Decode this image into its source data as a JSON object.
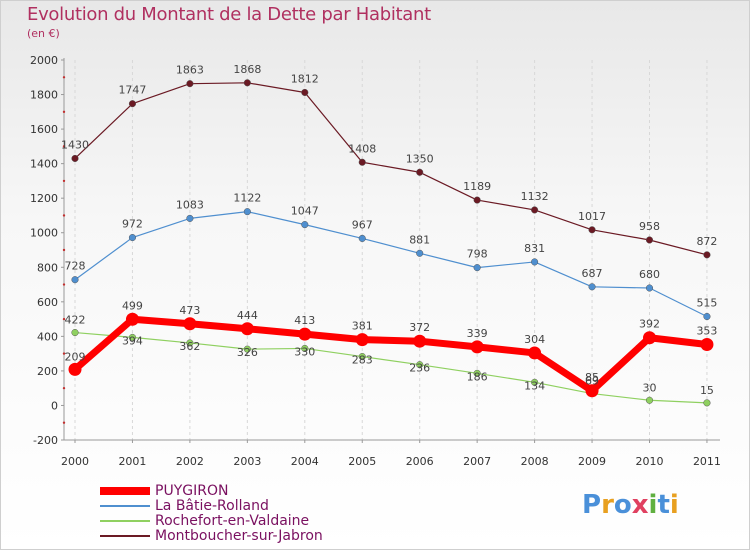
{
  "chart_data": {
    "type": "line",
    "title": "Evolution du Montant de la Dette par Habitant",
    "subtitle": "(en €)",
    "x": [
      "2000",
      "2001",
      "2002",
      "2003",
      "2004",
      "2005",
      "2006",
      "2007",
      "2008",
      "2009",
      "2010",
      "2011"
    ],
    "y_ticks": [
      "-200",
      "0",
      "200",
      "400",
      "600",
      "800",
      "1000",
      "1200",
      "1400",
      "1600",
      "1800",
      "2000"
    ],
    "ylim": [
      -200,
      2000
    ],
    "grid": "vertical-dashed",
    "legend_position": "bottom-left",
    "series": [
      {
        "name": "Montboucher-sur-Jabron",
        "color": "#6b1a24",
        "values": [
          1430,
          1747,
          1863,
          1868,
          1812,
          1408,
          1350,
          1189,
          1132,
          1017,
          958,
          872
        ]
      },
      {
        "name": "La Bâtie-Rolland",
        "color": "#4f8fcf",
        "values": [
          728,
          972,
          1083,
          1122,
          1047,
          967,
          881,
          798,
          831,
          687,
          680,
          515
        ]
      },
      {
        "name": "Rochefort-en-Valdaine",
        "color": "#8fd060",
        "values": [
          422,
          394,
          362,
          326,
          330,
          283,
          236,
          186,
          134,
          69,
          30,
          15
        ]
      },
      {
        "name": "PUYGIRON",
        "color": "#ff0000",
        "values": [
          209,
          499,
          473,
          444,
          413,
          381,
          372,
          339,
          304,
          85,
          392,
          353
        ]
      }
    ],
    "legend_order": [
      "PUYGIRON",
      "La Bâtie-Rolland",
      "Rochefort-en-Valdaine",
      "Montboucher-sur-Jabron"
    ]
  },
  "logo": {
    "text": "Proxiti",
    "letters": [
      "P",
      "r",
      "o",
      "x",
      "i",
      "t",
      "i"
    ],
    "colors": [
      "#4a90d9",
      "#e8a020",
      "#4a90d9",
      "#e04060",
      "#60b040",
      "#4a90d9",
      "#e8a020"
    ]
  }
}
